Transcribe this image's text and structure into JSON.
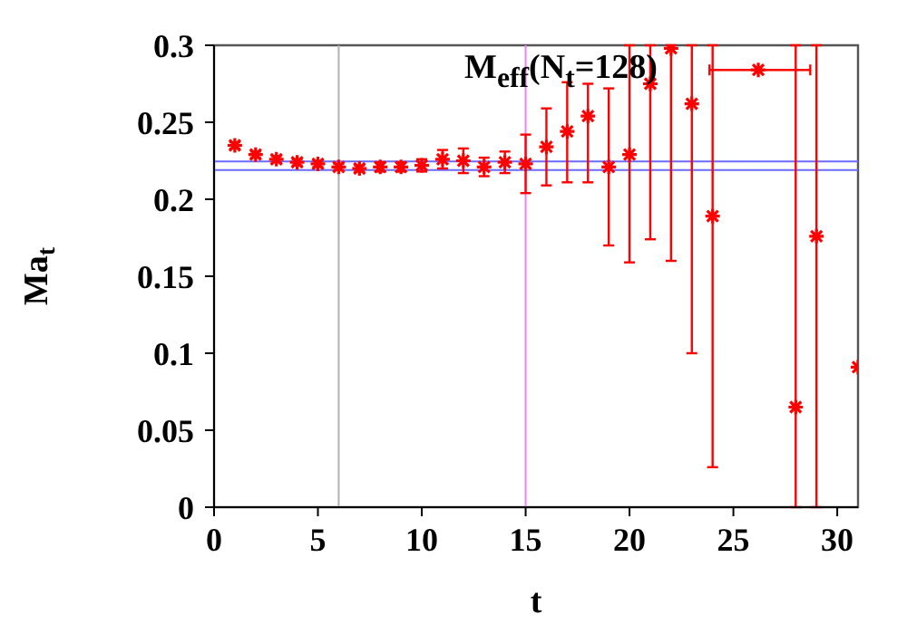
{
  "chart_data": {
    "type": "scatter",
    "xlabel": "t",
    "ylabel": "Ma$_{t}$",
    "annotations": [
      "M$_{eff}$(N$_{t}$=128)"
    ],
    "x": [
      1,
      2,
      3,
      4,
      5,
      6,
      7,
      8,
      9,
      10,
      11,
      12,
      13,
      14,
      15,
      16,
      17,
      18,
      19,
      20,
      21,
      22,
      23,
      24,
      26.2,
      28,
      29,
      31
    ],
    "series": [
      {
        "color": "#ff0000",
        "values": [
          0.235,
          0.229,
          0.226,
          0.224,
          0.223,
          0.221,
          0.22,
          0.221,
          0.221,
          0.222,
          0.226,
          0.225,
          0.221,
          0.224,
          0.223,
          0.234,
          0.244,
          0.254,
          0.221,
          0.229,
          0.275,
          0.298,
          0.262,
          0.189,
          0.284,
          0.065,
          0.176,
          0.091
        ],
        "errors": [
          0.002,
          0.002,
          0.002,
          0.002,
          0.002,
          0.002,
          0.002,
          0.003,
          0.003,
          0.004,
          0.006,
          0.008,
          0.006,
          0.007,
          [
            0.204,
            0.242
          ],
          [
            0.209,
            0.259
          ],
          [
            0.211,
            0.276
          ],
          [
            0.211,
            0.275
          ],
          [
            0.17,
            0.272
          ],
          [
            0.159,
            0.3
          ],
          [
            0.174,
            0.3
          ],
          [
            0.16,
            0.3
          ],
          [
            0.1,
            0.3
          ],
          [
            0.026,
            0.3
          ],
          null,
          [
            0,
            0.3
          ],
          [
            0,
            0.3
          ],
          null
        ],
        "xerrors": [
          null,
          null,
          null,
          null,
          null,
          null,
          null,
          null,
          null,
          null,
          null,
          null,
          null,
          null,
          null,
          null,
          null,
          null,
          null,
          null,
          null,
          null,
          null,
          null,
          [
            23.85,
            28.7
          ],
          null,
          null,
          null
        ]
      }
    ],
    "xlim": [
      0,
      31
    ],
    "xticks": [
      0,
      5,
      10,
      15,
      20,
      25,
      30
    ],
    "ylim": [
      0,
      0.3
    ],
    "yticks": [
      0,
      0.05,
      0.1,
      0.15,
      0.2,
      0.25,
      0.3
    ],
    "marker": "cross",
    "ref_lines": [
      {
        "axis": "x",
        "value": 6,
        "color": "#b0b0b0"
      },
      {
        "axis": "x",
        "value": 15,
        "color": "#ee82ee"
      },
      {
        "axis": "y",
        "value": 0.2245,
        "color": "#6a6aff"
      },
      {
        "axis": "y",
        "value": 0.219,
        "color": "#6a6aff"
      }
    ]
  }
}
